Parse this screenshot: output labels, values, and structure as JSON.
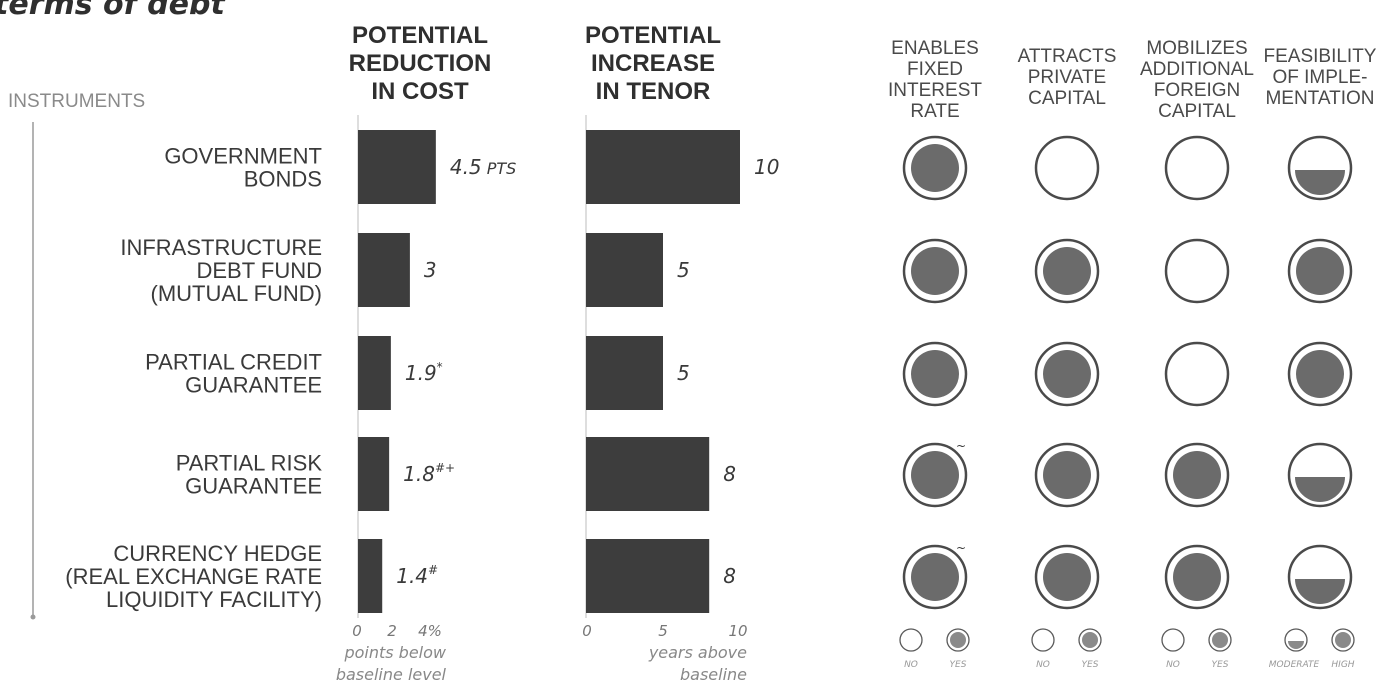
{
  "title": "terms of debt",
  "instruments_label": "INSTRUMENTS",
  "instruments": [
    [
      "GOVERNMENT",
      "BONDS"
    ],
    [
      "INFRASTRUCTURE",
      "DEBT FUND",
      "(MUTUAL FUND)"
    ],
    [
      "PARTIAL CREDIT",
      "GUARANTEE"
    ],
    [
      "PARTIAL RISK",
      "GUARANTEE"
    ],
    [
      "CURRENCY HEDGE",
      "(REAL EXCHANGE RATE",
      "LIQUIDITY FACILITY)"
    ]
  ],
  "colors": {
    "bar": "#3d3d3d",
    "circle_fill": "#6b6b6b",
    "circle_stroke": "#4a4a4a",
    "text": "#3a3a3a"
  },
  "chart_data": [
    {
      "type": "bar",
      "orientation": "horizontal",
      "title": [
        "POTENTIAL",
        "REDUCTION",
        "IN COST"
      ],
      "categories": [
        "GOVERNMENT BONDS",
        "INFRASTRUCTURE DEBT FUND (MUTUAL FUND)",
        "PARTIAL CREDIT GUARANTEE",
        "PARTIAL RISK GUARANTEE",
        "CURRENCY HEDGE (REAL EXCHANGE RATE LIQUIDITY FACILITY)"
      ],
      "values": [
        4.5,
        3,
        1.9,
        1.8,
        1.4
      ],
      "value_labels": [
        "4.5",
        "3",
        "1.9",
        "1.8",
        "1.4"
      ],
      "value_suffixes": [
        " PTS",
        "",
        "",
        "",
        ""
      ],
      "superscripts": [
        "",
        "",
        "*",
        "#+",
        "#"
      ],
      "ticks": [
        "0",
        "2",
        "4%"
      ],
      "tick_values": [
        0,
        2,
        4
      ],
      "xlim": [
        0,
        4
      ],
      "xlabel": [
        "points below",
        "baseline level"
      ]
    },
    {
      "type": "bar",
      "orientation": "horizontal",
      "title": [
        "POTENTIAL",
        "INCREASE",
        "IN TENOR"
      ],
      "categories": [
        "GOVERNMENT BONDS",
        "INFRASTRUCTURE DEBT FUND (MUTUAL FUND)",
        "PARTIAL CREDIT GUARANTEE",
        "PARTIAL RISK GUARANTEE",
        "CURRENCY HEDGE (REAL EXCHANGE RATE LIQUIDITY FACILITY)"
      ],
      "values": [
        10,
        5,
        5,
        8,
        8
      ],
      "value_labels": [
        "10",
        "5",
        "5",
        "8",
        "8"
      ],
      "ticks": [
        "0",
        "5",
        "10"
      ],
      "tick_values": [
        0,
        5,
        10
      ],
      "xlim": [
        0,
        10
      ],
      "xlabel": [
        "years above",
        "baseline"
      ]
    },
    {
      "type": "table",
      "columns": [
        {
          "title": [
            "ENABLES",
            "FIXED",
            "INTEREST",
            "RATE"
          ],
          "values": [
            "yes",
            "yes",
            "yes",
            "yes",
            "yes"
          ],
          "marks": [
            "",
            "",
            "",
            "~",
            "~"
          ],
          "legend": [
            "NO",
            "YES"
          ]
        },
        {
          "title": [
            "ATTRACTS",
            "PRIVATE",
            "CAPITAL"
          ],
          "values": [
            "no",
            "yes",
            "yes",
            "yes",
            "yes"
          ],
          "marks": [
            "",
            "",
            "",
            "",
            ""
          ],
          "legend": [
            "NO",
            "YES"
          ]
        },
        {
          "title": [
            "MOBILIZES",
            "ADDITIONAL",
            "FOREIGN",
            "CAPITAL"
          ],
          "values": [
            "no",
            "no",
            "no",
            "yes",
            "yes"
          ],
          "marks": [
            "",
            "",
            "",
            "",
            ""
          ],
          "legend": [
            "NO",
            "YES"
          ]
        },
        {
          "title": [
            "FEASIBILITY",
            "OF IMPLE-",
            "MENTATION"
          ],
          "values": [
            "moderate",
            "high",
            "high",
            "moderate",
            "moderate"
          ],
          "marks": [
            "",
            "",
            "",
            "",
            ""
          ],
          "legend": [
            "MODERATE",
            "HIGH"
          ]
        }
      ]
    }
  ]
}
